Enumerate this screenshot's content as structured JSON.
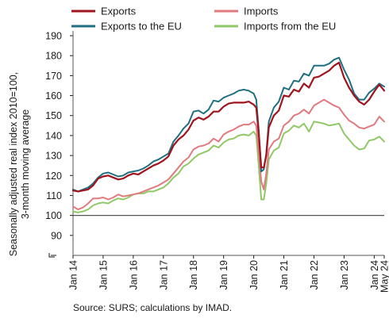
{
  "chart_data": {
    "type": "line",
    "ylabel": [
      "Seasonally adjusted real index 2010=100,",
      "3-month moving average"
    ],
    "source": "Source: SURS; calculations by IMAD.",
    "ylim": [
      80,
      190
    ],
    "yticks": [
      190,
      180,
      170,
      160,
      150,
      140,
      130,
      120,
      110,
      100,
      90
    ],
    "xlim": [
      "2014-01",
      "2024-05"
    ],
    "xtick_labels": [
      "Jan 14",
      "Jan 15",
      "Jan 16",
      "Jan 17",
      "Jan 18",
      "Jan 19",
      "Jan 20",
      "Jan 21",
      "Jan 22",
      "Jan 23",
      "Jan 24",
      "May 24"
    ],
    "reference_line": 100,
    "legend_position": "top",
    "axis_break": true,
    "grid": false,
    "x": [
      "2014-01",
      "2014-03",
      "2014-05",
      "2014-07",
      "2014-09",
      "2014-11",
      "2015-01",
      "2015-03",
      "2015-05",
      "2015-07",
      "2015-09",
      "2015-11",
      "2016-01",
      "2016-03",
      "2016-05",
      "2016-07",
      "2016-09",
      "2016-11",
      "2017-01",
      "2017-03",
      "2017-05",
      "2017-07",
      "2017-09",
      "2017-11",
      "2018-01",
      "2018-03",
      "2018-05",
      "2018-07",
      "2018-09",
      "2018-11",
      "2019-01",
      "2019-03",
      "2019-05",
      "2019-07",
      "2019-09",
      "2019-11",
      "2020-01",
      "2020-02",
      "2020-03",
      "2020-04",
      "2020-05",
      "2020-06",
      "2020-07",
      "2020-09",
      "2020-11",
      "2021-01",
      "2021-03",
      "2021-05",
      "2021-07",
      "2021-09",
      "2021-11",
      "2022-01",
      "2022-03",
      "2022-05",
      "2022-07",
      "2022-09",
      "2022-11",
      "2023-01",
      "2023-03",
      "2023-05",
      "2023-07",
      "2023-09",
      "2023-11",
      "2024-01",
      "2024-03",
      "2024-05"
    ],
    "series": [
      {
        "name": "Exports",
        "color": "#a0141e",
        "width": 2.2,
        "values": [
          112.5,
          112,
          112.5,
          113,
          115,
          118.5,
          119.5,
          120,
          119,
          118,
          118.5,
          120,
          121,
          120.5,
          122,
          123.5,
          125,
          126,
          127.5,
          129.5,
          135,
          138,
          140,
          143,
          147.5,
          149,
          148,
          149.5,
          152,
          152,
          154.5,
          156,
          156.5,
          156.5,
          156.5,
          157,
          155.5,
          154,
          141,
          124,
          124,
          130,
          144,
          150,
          152.5,
          160,
          159.5,
          163,
          162,
          166,
          164,
          169,
          169.5,
          171,
          172.5,
          175,
          176.5,
          169,
          164,
          160,
          157,
          155.5,
          158,
          162,
          165.5,
          162.5
        ]
      },
      {
        "name": "Imports",
        "color": "#e07a7f",
        "width": 2,
        "values": [
          104.5,
          103,
          104,
          106,
          108.5,
          108.5,
          109,
          108,
          109,
          110.5,
          109.5,
          110,
          110.5,
          111,
          112,
          113,
          114,
          115,
          116.5,
          118,
          121,
          124,
          127,
          129,
          133,
          134.5,
          135,
          136,
          138.5,
          137,
          140.5,
          142,
          143,
          144.5,
          145.5,
          145.5,
          147,
          145,
          132,
          117,
          113,
          121,
          133,
          137,
          138.5,
          145,
          147,
          150,
          151,
          153,
          151,
          155,
          156.5,
          158,
          156.5,
          155,
          154,
          150.5,
          147.5,
          146,
          144,
          143.5,
          144.5,
          145.5,
          149.5,
          147
        ]
      },
      {
        "name": "Exports to the EU",
        "color": "#1f6f82",
        "width": 2,
        "values": [
          113,
          112,
          113,
          114,
          116,
          119,
          121,
          121.5,
          120.5,
          119.5,
          120,
          121.5,
          122,
          122.5,
          123.5,
          125,
          127,
          128,
          129.5,
          131,
          137,
          140,
          143.5,
          146,
          152,
          152.5,
          151,
          153,
          157.5,
          157,
          159,
          160,
          161,
          162.5,
          163,
          162.5,
          161,
          158,
          143,
          122,
          123,
          131,
          147,
          154,
          157,
          164,
          163,
          167.5,
          167,
          171,
          170,
          175,
          175,
          175,
          176,
          178,
          179,
          173,
          168,
          161,
          158,
          158,
          161.5,
          163.5,
          166,
          164.5
        ]
      },
      {
        "name": "Imports from the EU",
        "color": "#8fc866",
        "width": 2,
        "values": [
          102,
          101.5,
          102,
          103,
          105,
          106,
          106.5,
          106,
          107.5,
          108.5,
          108,
          109,
          110.5,
          111,
          111,
          112,
          112,
          113,
          114,
          116,
          119,
          121,
          124.5,
          126,
          128.5,
          130.5,
          131.5,
          132.5,
          135,
          134,
          136.5,
          138,
          138.5,
          140,
          140.5,
          140,
          142,
          140,
          125,
          108,
          108,
          116,
          128,
          132.5,
          134,
          141,
          142.5,
          145,
          144,
          146,
          142,
          147,
          146.5,
          146,
          145,
          145.5,
          146,
          141,
          138,
          135,
          133,
          133.5,
          137.5,
          138,
          139.5,
          137
        ]
      }
    ]
  }
}
